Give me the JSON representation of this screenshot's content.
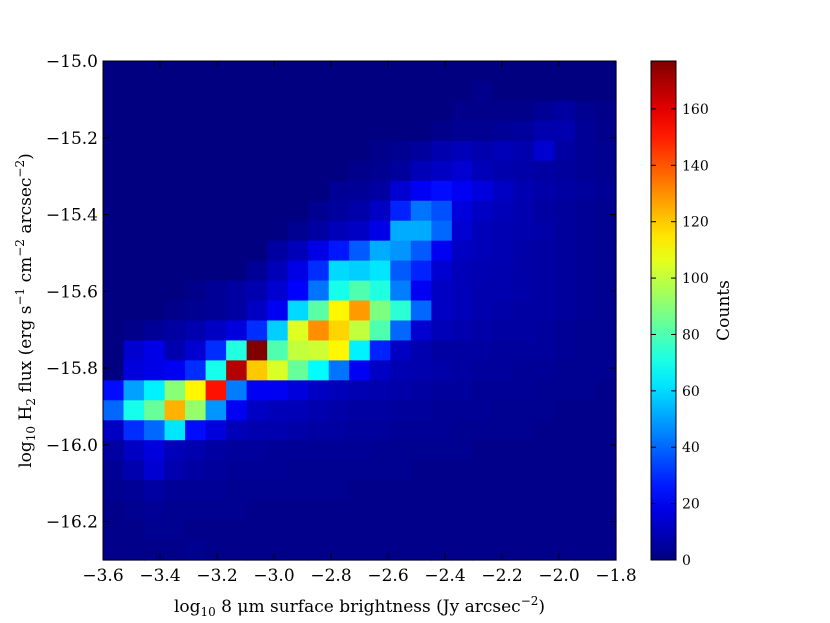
{
  "chart_data": {
    "type": "heatmap",
    "title": "",
    "xlabel": {
      "main": "log",
      "sub": "10",
      "post": " 8 μm surface brightness (Jy arcsec",
      "sup": "−2",
      "end": ")"
    },
    "ylabel": {
      "main": "log",
      "sub": "10",
      "mid1": " H",
      "sub2": "2",
      "mid2": " flux (erg s",
      "sup1": "−1",
      "mid3": " cm",
      "sup2": "−2",
      "mid4": " arcsec",
      "sup3": "−2",
      "end": ")"
    },
    "xlim": [
      -3.6,
      -1.8
    ],
    "ylim": [
      -16.3,
      -15.0
    ],
    "x_ticks": [
      -3.6,
      -3.4,
      -3.2,
      -3.0,
      -2.8,
      -2.6,
      -2.4,
      -2.2,
      -2.0,
      -1.8
    ],
    "x_tick_labels": [
      "−3.6",
      "−3.4",
      "−3.2",
      "−3.0",
      "−2.8",
      "−2.6",
      "−2.4",
      "−2.2",
      "−2.0",
      "−1.8"
    ],
    "y_ticks": [
      -15.0,
      -15.2,
      -15.4,
      -15.6,
      -15.8,
      -16.0,
      -16.2
    ],
    "y_tick_labels": [
      "−15.0",
      "−15.2",
      "−15.4",
      "−15.6",
      "−15.8",
      "−16.0",
      "−16.2"
    ],
    "colorbar": {
      "label": "Counts",
      "range": [
        0,
        177
      ],
      "ticks": [
        0,
        20,
        40,
        60,
        80,
        100,
        120,
        140,
        160
      ],
      "tick_labels": [
        "0",
        "20",
        "40",
        "60",
        "80",
        "100",
        "120",
        "140",
        "160"
      ],
      "colormap": "jet"
    },
    "bins": {
      "nx": 25,
      "ny": 25
    },
    "bin_note_rows": "row 0 = top (y = -15.0), column 0 = left (x = -3.6)",
    "z": [
      [
        0,
        0,
        0,
        0,
        0,
        0,
        0,
        0,
        0,
        0,
        0,
        0,
        0,
        0,
        0,
        0,
        0,
        0,
        0,
        0,
        0,
        0,
        0,
        0,
        0
      ],
      [
        0,
        0,
        0,
        0,
        0,
        0,
        0,
        0,
        0,
        0,
        0,
        0,
        0,
        0,
        0,
        0,
        0,
        0,
        2,
        0,
        0,
        0,
        0,
        0,
        0
      ],
      [
        0,
        0,
        0,
        0,
        0,
        0,
        0,
        0,
        0,
        0,
        0,
        0,
        0,
        0,
        0,
        0,
        0,
        2,
        2,
        2,
        2,
        4,
        6,
        3,
        2
      ],
      [
        0,
        0,
        0,
        0,
        0,
        0,
        0,
        0,
        0,
        0,
        0,
        0,
        0,
        0,
        0,
        0,
        2,
        3,
        3,
        4,
        5,
        8,
        8,
        4,
        2
      ],
      [
        0,
        0,
        0,
        0,
        0,
        0,
        0,
        0,
        0,
        0,
        0,
        0,
        0,
        2,
        3,
        5,
        8,
        10,
        8,
        10,
        8,
        14,
        6,
        4,
        3
      ],
      [
        0,
        0,
        0,
        0,
        0,
        0,
        0,
        0,
        0,
        0,
        0,
        0,
        2,
        3,
        5,
        10,
        12,
        14,
        10,
        8,
        7,
        6,
        5,
        4,
        3
      ],
      [
        0,
        0,
        0,
        0,
        0,
        0,
        0,
        0,
        0,
        0,
        0,
        4,
        4,
        6,
        14,
        20,
        24,
        20,
        16,
        12,
        9,
        7,
        6,
        5,
        4
      ],
      [
        0,
        0,
        0,
        0,
        0,
        0,
        0,
        0,
        0,
        0,
        3,
        5,
        7,
        12,
        28,
        42,
        36,
        16,
        12,
        10,
        8,
        6,
        5,
        4,
        3
      ],
      [
        0,
        0,
        0,
        0,
        0,
        0,
        0,
        0,
        0,
        3,
        6,
        10,
        12,
        18,
        52,
        52,
        40,
        14,
        10,
        9,
        8,
        7,
        5,
        4,
        3
      ],
      [
        0,
        0,
        0,
        0,
        0,
        0,
        0,
        0,
        6,
        10,
        18,
        26,
        38,
        52,
        48,
        38,
        20,
        12,
        10,
        9,
        7,
        6,
        5,
        4,
        3
      ],
      [
        0,
        0,
        0,
        0,
        0,
        0,
        0,
        4,
        10,
        18,
        30,
        60,
        58,
        62,
        38,
        28,
        14,
        10,
        9,
        8,
        7,
        6,
        5,
        4,
        3
      ],
      [
        0,
        0,
        0,
        0,
        2,
        4,
        6,
        8,
        14,
        22,
        42,
        70,
        80,
        72,
        44,
        20,
        12,
        10,
        8,
        8,
        7,
        6,
        5,
        4,
        3
      ],
      [
        0,
        0,
        0,
        2,
        3,
        4,
        6,
        12,
        20,
        60,
        82,
        112,
        128,
        88,
        74,
        40,
        12,
        10,
        8,
        7,
        6,
        6,
        5,
        4,
        3
      ],
      [
        0,
        2,
        4,
        6,
        8,
        12,
        16,
        30,
        58,
        105,
        130,
        118,
        100,
        80,
        40,
        14,
        10,
        8,
        7,
        6,
        6,
        5,
        4,
        3,
        3
      ],
      [
        0,
        14,
        18,
        8,
        14,
        30,
        72,
        177,
        80,
        100,
        102,
        112,
        64,
        28,
        12,
        8,
        6,
        6,
        6,
        5,
        5,
        5,
        4,
        3,
        3
      ],
      [
        0,
        16,
        18,
        20,
        30,
        70,
        168,
        120,
        104,
        84,
        66,
        42,
        20,
        12,
        9,
        8,
        7,
        6,
        5,
        5,
        4,
        4,
        3,
        3,
        3
      ],
      [
        24,
        50,
        64,
        90,
        112,
        152,
        44,
        20,
        20,
        16,
        12,
        10,
        9,
        8,
        7,
        6,
        5,
        5,
        4,
        4,
        4,
        3,
        3,
        3,
        2
      ],
      [
        40,
        70,
        84,
        124,
        92,
        48,
        20,
        12,
        10,
        10,
        8,
        7,
        6,
        6,
        5,
        5,
        4,
        4,
        4,
        3,
        3,
        3,
        2,
        2,
        2
      ],
      [
        12,
        30,
        40,
        62,
        24,
        16,
        10,
        8,
        8,
        7,
        6,
        6,
        5,
        5,
        4,
        4,
        4,
        3,
        3,
        3,
        3,
        2,
        2,
        2,
        2
      ],
      [
        6,
        12,
        16,
        10,
        8,
        6,
        5,
        5,
        4,
        4,
        4,
        4,
        4,
        3,
        3,
        3,
        3,
        3,
        2,
        2,
        2,
        2,
        2,
        2,
        2
      ],
      [
        4,
        8,
        14,
        8,
        6,
        5,
        4,
        4,
        4,
        3,
        3,
        3,
        3,
        3,
        3,
        2,
        2,
        2,
        2,
        2,
        2,
        2,
        2,
        2,
        2
      ],
      [
        3,
        4,
        6,
        4,
        4,
        4,
        3,
        3,
        3,
        3,
        3,
        3,
        2,
        2,
        2,
        2,
        2,
        2,
        2,
        2,
        2,
        2,
        2,
        2,
        2
      ],
      [
        2,
        3,
        4,
        3,
        3,
        3,
        3,
        2,
        2,
        2,
        2,
        2,
        2,
        2,
        2,
        2,
        2,
        2,
        2,
        2,
        2,
        2,
        2,
        2,
        2
      ],
      [
        2,
        2,
        3,
        3,
        2,
        2,
        2,
        2,
        2,
        2,
        2,
        2,
        2,
        2,
        2,
        2,
        2,
        2,
        2,
        2,
        2,
        2,
        2,
        2,
        2
      ],
      [
        2,
        2,
        2,
        2,
        3,
        2,
        2,
        2,
        2,
        2,
        2,
        2,
        2,
        2,
        2,
        2,
        2,
        2,
        2,
        2,
        2,
        2,
        2,
        2,
        2
      ]
    ]
  }
}
